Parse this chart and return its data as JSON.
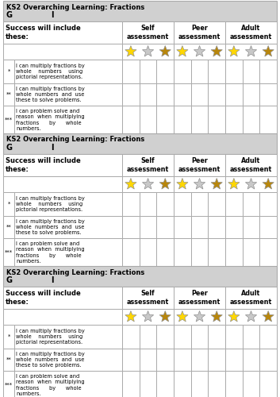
{
  "title_bold": "KS2 Overarching Learning:",
  "title_normal": " Fractions",
  "gi_label_g": "G",
  "gi_label_i": "I",
  "header_col1": "Success will include\nthese:",
  "header_col2": "Self\nassessment",
  "header_col3": "Peer\nassessment",
  "header_col4": "Adult\nassessment",
  "rows": [
    {
      "level": "*",
      "text": "I can multiply fractions by\nwhole    numbers    using\npictorial representations."
    },
    {
      "level": "**",
      "text": "I can multiply fractions by\nwhole  numbers  and  use\nthese to solve problems."
    },
    {
      "level": "***",
      "text": "I can problem solve and\nreason  when  multiplying\nfractions      by      whole\nnumbers."
    }
  ],
  "panel_star_colors": [
    [
      [
        "#FFD700",
        "#C8C8C8",
        "#B8860B"
      ],
      [
        "#FFD700",
        "#C8C8C8",
        "#B8860B"
      ],
      [
        "#FFD700",
        "#C8C8C8",
        "#B8860B"
      ]
    ],
    [
      [
        "#FFD700",
        "#C8C8C8",
        "#B8860B"
      ],
      [
        "#FFD700",
        "#C8C8C8",
        "#B8860B"
      ],
      [
        "#FFD700",
        "#C8C8C8",
        "#B8860B"
      ]
    ],
    [
      [
        "#FFD700",
        "#C8C8C8",
        "#B8860B"
      ],
      [
        "#FFD700",
        "#C8C8C8",
        "#B8860B"
      ],
      [
        "#FFD700",
        "#C8C8C8",
        "#B8860B"
      ]
    ]
  ],
  "bg_header": "#D0D0D0",
  "bg_white": "#FFFFFF",
  "border_color": "#AAAAAA",
  "text_color": "#000000",
  "fig_w": 3.53,
  "fig_h": 5.0,
  "dpi": 100
}
